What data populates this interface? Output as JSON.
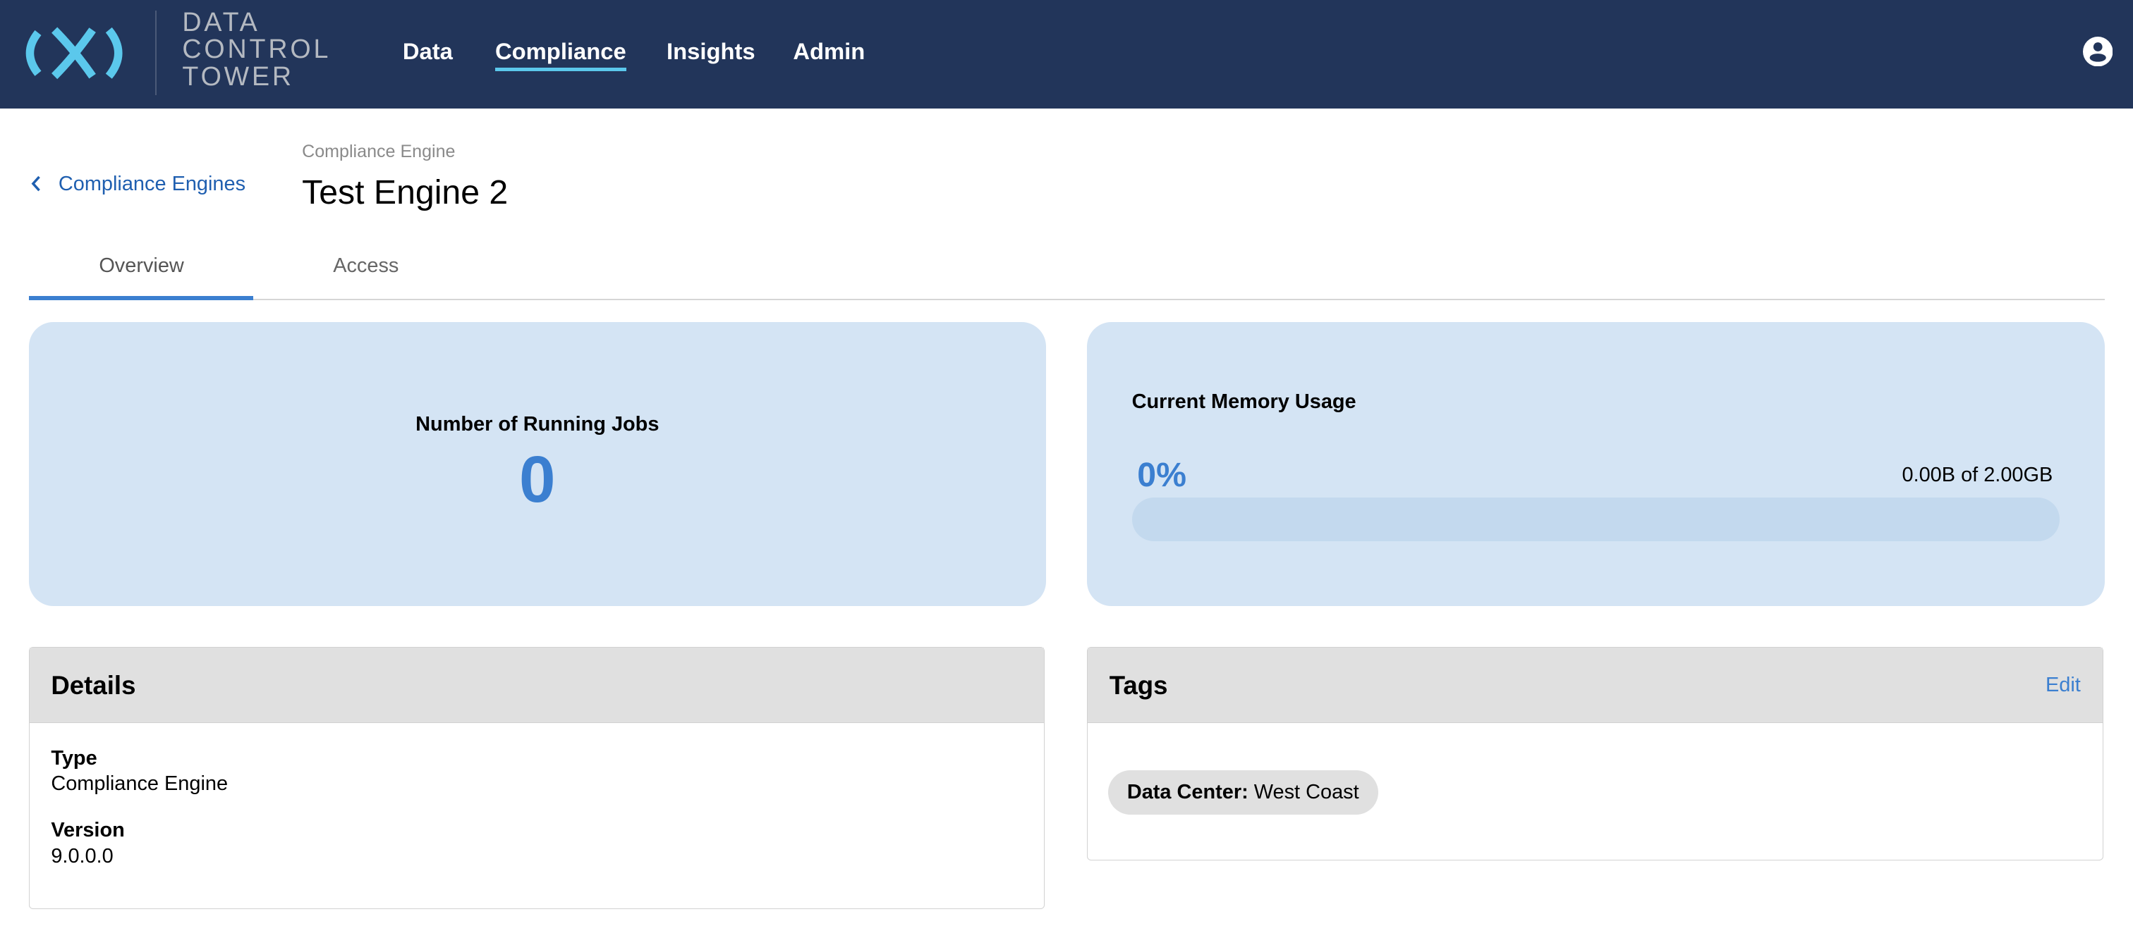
{
  "header": {
    "logo_text": [
      "DATA",
      "CONTROL",
      "TOWER"
    ],
    "nav": [
      {
        "label": "Data"
      },
      {
        "label": "Compliance",
        "active": true
      },
      {
        "label": "Insights"
      },
      {
        "label": "Admin"
      }
    ],
    "user_icon": "account-circle-icon",
    "colors": {
      "bg": "#22355a",
      "accent": "#5bc8ec"
    }
  },
  "breadcrumb": {
    "back_label": "Compliance Engines",
    "parent": "Compliance Engine"
  },
  "page": {
    "title": "Test Engine 2"
  },
  "tabs": [
    {
      "label": "Overview",
      "active": true
    },
    {
      "label": "Access"
    }
  ],
  "running_jobs": {
    "label": "Number of Running Jobs",
    "value": "0"
  },
  "memory": {
    "label": "Current Memory Usage",
    "percent_text": "0%",
    "percent": 0,
    "usage_text": "0.00B of 2.00GB"
  },
  "details": {
    "title": "Details",
    "fields": [
      {
        "label": "Type",
        "value": "Compliance Engine"
      },
      {
        "label": "Version",
        "value": "9.0.0.0"
      }
    ]
  },
  "tags": {
    "title": "Tags",
    "edit_label": "Edit",
    "items": [
      {
        "key": "Data Center:",
        "value": "West Coast"
      }
    ]
  }
}
